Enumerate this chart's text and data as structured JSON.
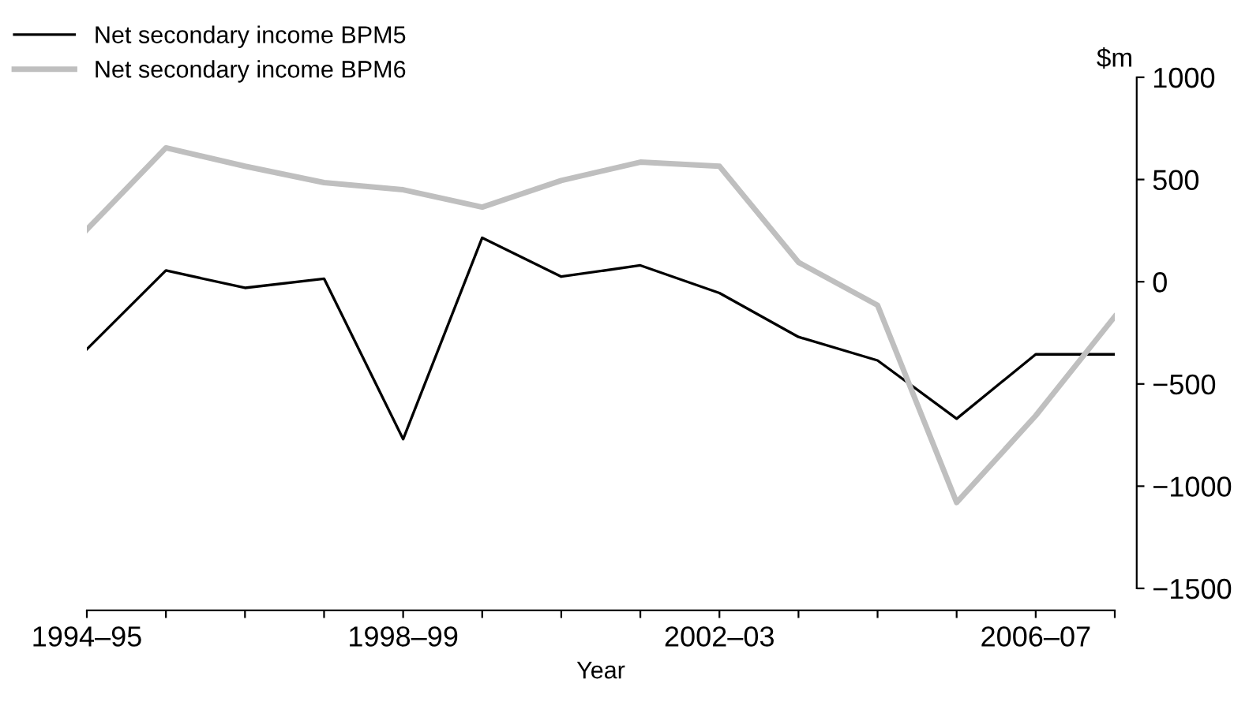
{
  "chart_data": {
    "type": "line",
    "xlabel": "Year",
    "ylabel": "$m",
    "categories": [
      "1994–95",
      null,
      null,
      null,
      "1998–99",
      null,
      null,
      null,
      "2002–03",
      null,
      null,
      null,
      "2006–07",
      null
    ],
    "series": [
      {
        "name": "Net secondary income BPM5",
        "color": "#000000",
        "values": [
          -330,
          55,
          -30,
          15,
          -770,
          215,
          25,
          80,
          -55,
          -270,
          -385,
          -670,
          -355,
          -355
        ]
      },
      {
        "name": "Net secondary income BPM6",
        "color": "#bfbfbf",
        "values": [
          255,
          655,
          565,
          485,
          450,
          365,
          495,
          585,
          565,
          95,
          -115,
          -1080,
          -655,
          -170
        ]
      }
    ],
    "ylim": [
      -1500,
      1000
    ],
    "yticks": [
      {
        "value": 1000,
        "label": "1000"
      },
      {
        "value": 500,
        "label": "500"
      },
      {
        "value": 0,
        "label": "0"
      },
      {
        "value": -500,
        "label": "−500"
      },
      {
        "value": -1000,
        "label": "−1000"
      },
      {
        "value": -1500,
        "label": "−1500"
      }
    ],
    "grid": false,
    "legend": "top left",
    "marker": "none",
    "line_style": "solid"
  }
}
